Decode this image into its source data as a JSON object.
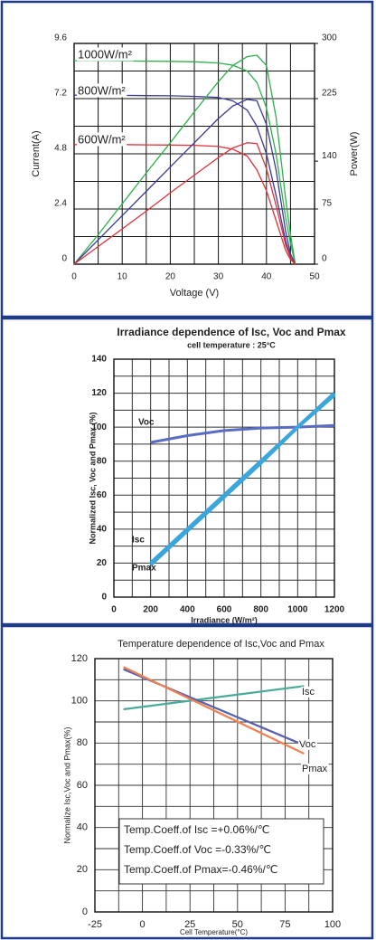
{
  "chart_data": [
    {
      "type": "line",
      "x_label": "Voltage (V)",
      "y_label": "Current(A)",
      "y2_label": "Power(W)",
      "x": [
        0,
        5,
        10,
        15,
        20,
        25,
        30,
        33,
        36,
        38,
        40,
        42,
        44,
        45,
        46
      ],
      "xlim": [
        0,
        50
      ],
      "xticks": [
        0,
        10,
        20,
        30,
        40,
        50
      ],
      "ylim": [
        0,
        9.6
      ],
      "yticks": [
        0,
        2.4,
        4.8,
        7.2,
        9.6
      ],
      "y2lim": [
        0,
        300
      ],
      "y2ticks": [
        0,
        75,
        140,
        225,
        300
      ],
      "grid": true,
      "series": [
        {
          "name": "1000W/m²",
          "color": "#2db04b",
          "values": [
            8.85,
            8.85,
            8.84,
            8.83,
            8.82,
            8.8,
            8.75,
            8.65,
            8.4,
            7.9,
            6.8,
            4.8,
            2.0,
            0.9,
            0
          ]
        },
        {
          "name": "800W/m²",
          "color": "#3a3a9a",
          "values": [
            7.35,
            7.35,
            7.34,
            7.33,
            7.32,
            7.3,
            7.25,
            7.1,
            6.7,
            6.0,
            4.8,
            3.0,
            1.0,
            0.3,
            0
          ]
        },
        {
          "name": "600W/m²",
          "color": "#e0303a",
          "values": [
            5.2,
            5.2,
            5.2,
            5.19,
            5.18,
            5.17,
            5.12,
            5.0,
            4.7,
            4.1,
            3.2,
            1.9,
            0.6,
            0.2,
            0
          ]
        },
        {
          "color": "#2db04b",
          "axis": "y2",
          "values": [
            0,
            40,
            82,
            124,
            165,
            207,
            248,
            270,
            282,
            284,
            270,
            200,
            88,
            40,
            0
          ]
        },
        {
          "color": "#3a3a9a",
          "axis": "y2",
          "values": [
            0,
            33,
            66,
            99,
            132,
            165,
            198,
            215,
            224,
            222,
            190,
            128,
            44,
            14,
            0
          ]
        },
        {
          "color": "#e0303a",
          "axis": "y2",
          "values": [
            0,
            24,
            48,
            72,
            97,
            121,
            145,
            158,
            165,
            164,
            130,
            80,
            26,
            9,
            0
          ]
        }
      ]
    },
    {
      "type": "line",
      "title": "Irradiance dependence of Isc, Voc and Pmax",
      "subtitle": "cell temperature : 25°C",
      "x_label": "Irradiance (W/m²)",
      "y_label": "Normalized Isc, Voc and Pmax (%)",
      "x": [
        200,
        400,
        600,
        800,
        1000,
        1200
      ],
      "xlim": [
        0,
        1200
      ],
      "xticks": [
        0,
        200,
        400,
        600,
        800,
        1000,
        1200
      ],
      "ylim": [
        0,
        140
      ],
      "yticks": [
        0,
        20,
        40,
        60,
        80,
        100,
        120,
        140
      ],
      "grid": true,
      "series": [
        {
          "name": "Voc",
          "color": "#5a6cc4",
          "values": [
            91,
            95,
            98,
            99.5,
            100,
            101
          ]
        },
        {
          "name": "Isc",
          "color": "#3aa6dc",
          "values": [
            20,
            40,
            60,
            80,
            100,
            120
          ]
        },
        {
          "name": "Pmax",
          "color": "#3aa6dc",
          "values": [
            19,
            39,
            59,
            79,
            100,
            119
          ]
        }
      ]
    },
    {
      "type": "line",
      "title": "Temperature dependence of Isc,Voc and Pmax",
      "x_label": "Cell Temperature(°C)",
      "y_label": "Normalize Isc,Voc and Pmax(%)",
      "x": [
        -10,
        85
      ],
      "xlim": [
        -25,
        100
      ],
      "xticks": [
        -25,
        0,
        25,
        50,
        75,
        100
      ],
      "ylim": [
        0,
        120
      ],
      "yticks": [
        0,
        20,
        40,
        60,
        80,
        100,
        120
      ],
      "grid": true,
      "series": [
        {
          "name": "Isc",
          "color": "#4aaa9a",
          "values": [
            96,
            107
          ]
        },
        {
          "name": "Voc",
          "color": "#5560b0",
          "values": [
            115,
            79
          ]
        },
        {
          "name": "Pmax",
          "color": "#f08050",
          "values": [
            116,
            75
          ]
        }
      ],
      "annotations": [
        "Temp.Coeff.of Isc =+0.06%/℃",
        "Temp.Coeff.of Voc =-0.33%/℃",
        "Temp.Coeff.of Pmax=-0.46%/℃"
      ]
    }
  ]
}
